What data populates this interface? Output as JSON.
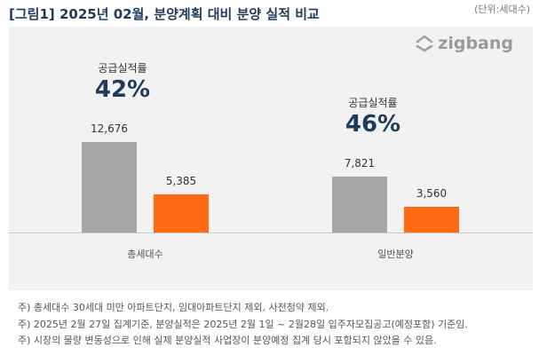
{
  "header": {
    "title": "[그림1] 2025년 02월, 분양계획 대비 분양 실적 비교",
    "unit": "(단위:세대수)"
  },
  "logo": {
    "text": "zigbang"
  },
  "chart_data": {
    "type": "bar",
    "categories": [
      "총세대수",
      "일반분양"
    ],
    "series": [
      {
        "values": [
          12676,
          7821
        ],
        "color": "#a6a6a6",
        "labels": [
          "12,676",
          "7,821"
        ]
      },
      {
        "values": [
          5385,
          3560
        ],
        "color": "#ff6a13",
        "labels": [
          "5,385",
          "3,560"
        ]
      }
    ],
    "rate_label": "공급실적률",
    "rates": [
      "42%",
      "46%"
    ],
    "ylim": [
      0,
      13000
    ],
    "grid": false
  },
  "notes": [
    "주) 총세대수 30세대 미만 아파트단지, 임대아파트단지 제외, 사전청약 제외.",
    "주) 2025년 2월 27일 집계기준, 분양실적은 2025년 2월 1일 ~ 2월28일 입주자모집공고(예정포함) 기준임.",
    "주) 시장의 물량 변동성으로 인해 실제 분양실적 사업장이 분양예정 집계 당시 포함되지 않았을 수 있음."
  ]
}
